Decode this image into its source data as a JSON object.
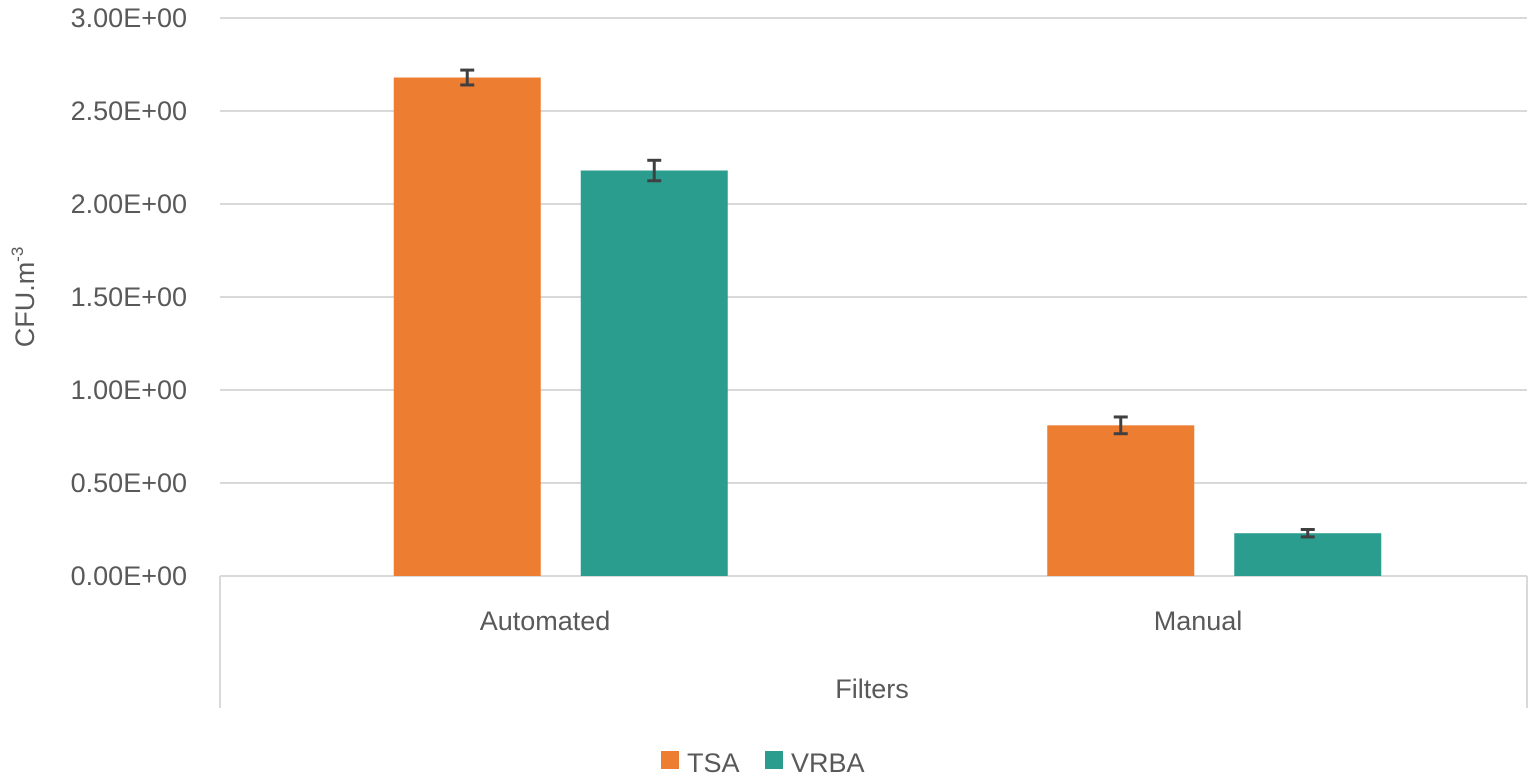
{
  "chart_data": {
    "type": "bar",
    "categories": [
      "Automated",
      "Manual"
    ],
    "series": [
      {
        "name": "TSA",
        "color": "#ED7D31",
        "values": [
          2.68,
          0.81
        ],
        "errors": [
          0.04,
          0.045
        ]
      },
      {
        "name": "VRBA",
        "color": "#2A9D8F",
        "values": [
          2.18,
          0.23
        ],
        "errors": [
          0.055,
          0.02
        ]
      }
    ],
    "ylim": [
      0,
      3
    ],
    "yticks": [
      "0.00E+00",
      "0.50E+00",
      "1.00E+00",
      "1.50E+00",
      "2.00E+00",
      "2.50E+00",
      "3.00E+00"
    ],
    "ylabel_base": "CFU.m",
    "ylabel_sup": "-3",
    "xlabel": "Filters",
    "grid": true,
    "legend": "bottom-center"
  }
}
